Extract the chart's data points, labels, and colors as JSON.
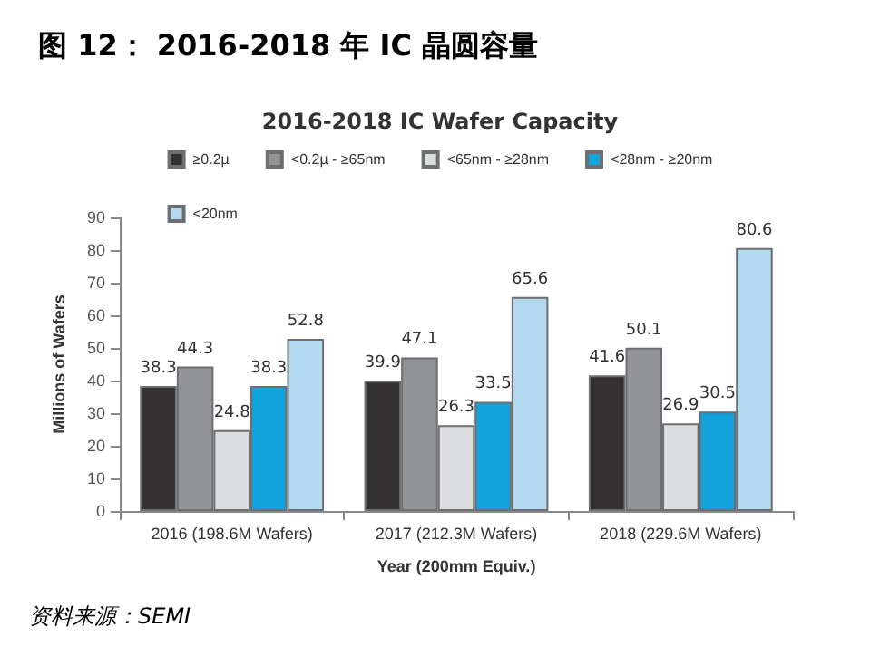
{
  "chart_data": {
    "type": "bar",
    "title": "图 12： 2016-2018 年 IC 晶圆容量",
    "subtitle": "2016-2018 IC Wafer Capacity",
    "xlabel": "Year (200mm Equiv.)",
    "ylabel": "Millions of Wafers",
    "categories": [
      "2016 (198.6M Wafers)",
      "2017 (212.3M Wafers)",
      "2018 (229.6M Wafers)"
    ],
    "series": [
      {
        "name": "≥0.2µ",
        "color": "#333132",
        "values": [
          38.3,
          39.9,
          41.6
        ]
      },
      {
        "name": "<0.2µ - ≥65nm",
        "color": "#929497",
        "values": [
          44.3,
          47.1,
          50.1
        ]
      },
      {
        "name": "<65nm - ≥28nm",
        "color": "#dcdddf",
        "values": [
          24.8,
          26.3,
          26.9
        ]
      },
      {
        "name": "<28nm - ≥20nm",
        "color": "#13a2dc",
        "values": [
          38.3,
          33.5,
          30.5
        ]
      },
      {
        "name": "<20nm",
        "color": "#b3d9f1",
        "values": [
          52.8,
          65.6,
          80.6
        ]
      }
    ],
    "ylim": [
      0,
      90
    ],
    "yticks": [
      0,
      10,
      20,
      30,
      40,
      50,
      60,
      70,
      80,
      90
    ],
    "grid": false,
    "legend": "top",
    "data_labels": true,
    "annotations": [
      "资料来源：SEMI"
    ]
  }
}
